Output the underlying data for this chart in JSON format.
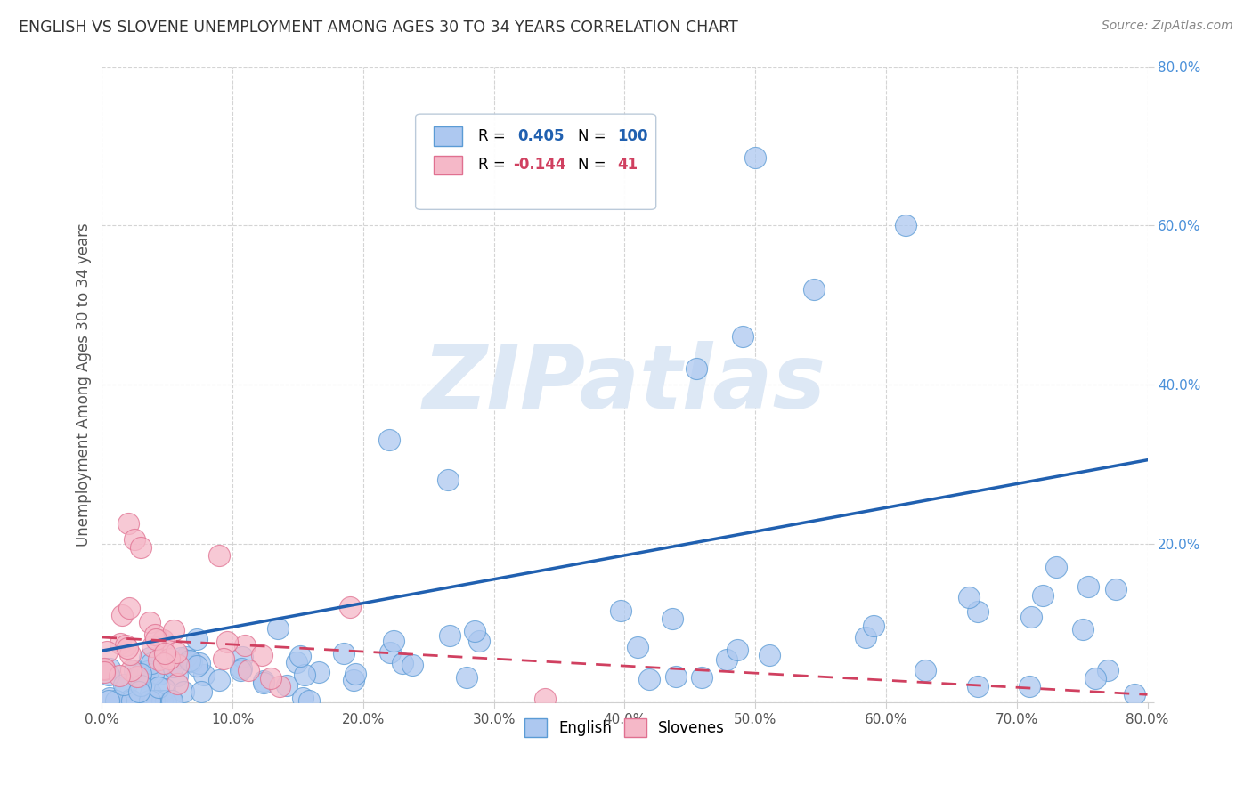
{
  "title": "ENGLISH VS SLOVENE UNEMPLOYMENT AMONG AGES 30 TO 34 YEARS CORRELATION CHART",
  "source": "Source: ZipAtlas.com",
  "ylabel": "Unemployment Among Ages 30 to 34 years",
  "xlim": [
    0.0,
    0.8
  ],
  "ylim": [
    0.0,
    0.8
  ],
  "english_R": 0.405,
  "english_N": 100,
  "slovene_R": -0.144,
  "slovene_N": 41,
  "english_color": "#adc8f0",
  "slovene_color": "#f5b8c8",
  "english_edge_color": "#5b9bd5",
  "slovene_edge_color": "#e07090",
  "english_line_color": "#2060b0",
  "slovene_line_color": "#d04060",
  "background_color": "#ffffff",
  "grid_color": "#d0d0d0",
  "title_color": "#333333",
  "source_color": "#888888",
  "watermark_color": "#dde8f5",
  "ytick_color": "#4a90d9",
  "xtick_color": "#555555"
}
